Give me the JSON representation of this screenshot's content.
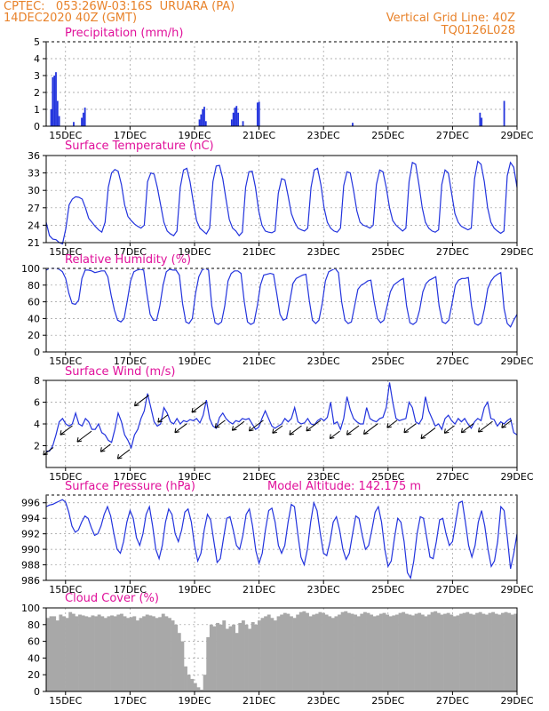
{
  "header": {
    "line1_left": "CPTEC:   053:26W-03:16S  URUARA (PA)",
    "line2_left": "14DEC2020 40Z (GMT)",
    "line1_right": "Vertical Grid Line: 40Z",
    "line2_right": "TQ0126L028"
  },
  "colors": {
    "header": "#e8822a",
    "title": "#e0109a",
    "series": "#2233dd",
    "cloud": "#a8a8a8",
    "grid": "#999999"
  },
  "x_tick_labels": [
    "15DEC",
    "17DEC",
    "19DEC",
    "21DEC",
    "23DEC",
    "25DEC",
    "27DEC",
    "29DEC"
  ],
  "chart_data": [
    {
      "type": "bar",
      "title": "Precipitation (mm/h)",
      "ylim": [
        0,
        5
      ],
      "yticks": [
        "0",
        "1",
        "2",
        "3",
        "4",
        "5"
      ],
      "x_days": [
        0.55,
        0.6,
        0.65,
        0.7,
        0.75,
        0.8,
        1.25,
        1.5,
        1.55,
        1.6,
        5.15,
        5.2,
        5.25,
        5.3,
        5.35,
        6.15,
        6.2,
        6.25,
        6.3,
        6.35,
        6.5,
        6.95,
        7.0,
        9.9,
        13.85,
        13.9,
        14.6
      ],
      "values": [
        1.0,
        2.9,
        3.0,
        3.2,
        1.5,
        0.6,
        0.25,
        0.5,
        0.8,
        1.1,
        0.4,
        0.7,
        1.0,
        1.15,
        0.3,
        0.4,
        0.8,
        1.1,
        1.2,
        0.8,
        0.3,
        1.4,
        1.45,
        0.2,
        0.8,
        0.5,
        1.5
      ]
    },
    {
      "type": "line",
      "title": "Surface Temperature (nC)",
      "ylim": [
        21,
        36
      ],
      "yticks": [
        "21",
        "24",
        "27",
        "30",
        "33",
        "36"
      ],
      "values": [
        24.5,
        22.2,
        21.6,
        21.5,
        21.0,
        20.8,
        23.4,
        27.5,
        28.5,
        28.9,
        28.8,
        28.5,
        27.0,
        25.2,
        24.5,
        23.8,
        23.2,
        22.8,
        24.5,
        30.5,
        33.0,
        33.6,
        33.3,
        31.0,
        27.5,
        25.5,
        24.8,
        24.2,
        23.8,
        23.5,
        24.0,
        31.5,
        33.0,
        32.8,
        30.5,
        27.5,
        24.5,
        23.0,
        22.5,
        22.2,
        23.0,
        30.5,
        33.5,
        33.8,
        31.5,
        28.0,
        24.8,
        23.5,
        23.0,
        22.5,
        23.5,
        31.5,
        34.2,
        34.3,
        32.0,
        28.5,
        25.0,
        23.5,
        23.0,
        22.2,
        22.8,
        30.5,
        33.2,
        33.3,
        30.5,
        26.5,
        24.0,
        23.0,
        22.8,
        22.7,
        23.0,
        29.5,
        32.0,
        31.8,
        29.0,
        26.0,
        24.5,
        23.5,
        23.2,
        23.0,
        23.5,
        30.5,
        33.5,
        33.8,
        31.0,
        27.0,
        24.5,
        23.5,
        23.0,
        22.8,
        23.5,
        30.8,
        33.2,
        33.0,
        30.0,
        26.5,
        24.5,
        24.0,
        23.8,
        23.5,
        24.0,
        31.0,
        33.5,
        33.2,
        30.5,
        27.0,
        24.8,
        24.0,
        23.5,
        23.0,
        23.5,
        31.5,
        34.8,
        34.5,
        31.0,
        27.0,
        24.5,
        23.5,
        23.0,
        22.8,
        23.2,
        31.0,
        33.5,
        33.0,
        29.5,
        26.0,
        24.5,
        23.8,
        23.5,
        23.2,
        23.5,
        32.0,
        35.0,
        34.5,
        31.5,
        27.0,
        24.5,
        23.5,
        23.0,
        22.6,
        23.0,
        32.5,
        34.8,
        34.0,
        30.5
      ]
    },
    {
      "type": "line",
      "title": "Relative Humidity (%)",
      "ylim": [
        0,
        100
      ],
      "yticks": [
        "0",
        "20",
        "40",
        "60",
        "80",
        "100"
      ],
      "values": [
        98,
        100,
        100,
        100,
        99,
        96,
        88,
        70,
        58,
        57,
        62,
        88,
        98,
        98,
        97,
        95,
        96,
        97,
        97,
        90,
        68,
        50,
        38,
        36,
        40,
        62,
        85,
        96,
        98,
        99,
        98,
        70,
        45,
        38,
        38,
        55,
        80,
        96,
        99,
        98,
        98,
        92,
        58,
        36,
        34,
        40,
        70,
        90,
        98,
        100,
        98,
        55,
        35,
        33,
        36,
        55,
        85,
        94,
        97,
        97,
        94,
        60,
        36,
        33,
        35,
        55,
        80,
        92,
        93,
        94,
        93,
        70,
        45,
        38,
        40,
        60,
        82,
        88,
        90,
        92,
        93,
        62,
        38,
        34,
        38,
        58,
        85,
        96,
        98,
        100,
        95,
        60,
        38,
        34,
        36,
        55,
        75,
        80,
        82,
        85,
        86,
        60,
        40,
        35,
        38,
        55,
        72,
        80,
        83,
        86,
        88,
        55,
        35,
        33,
        36,
        50,
        72,
        82,
        86,
        88,
        90,
        55,
        36,
        34,
        38,
        58,
        80,
        86,
        88,
        88,
        89,
        55,
        34,
        32,
        35,
        52,
        76,
        85,
        90,
        93,
        95,
        52,
        34,
        30,
        38,
        45
      ]
    },
    {
      "type": "line",
      "title": "Surface Wind (m/s)",
      "ylim": [
        0,
        8
      ],
      "yticks": [
        "2",
        "4",
        "6",
        "8"
      ],
      "arrows_note": "wind direction arrows drawn along the speed trace",
      "values": [
        1.5,
        1.5,
        2.0,
        3.0,
        4.2,
        4.5,
        4.0,
        3.8,
        4.0,
        5.0,
        4.0,
        3.8,
        4.5,
        4.2,
        3.5,
        3.5,
        4.0,
        3.2,
        3.0,
        2.5,
        2.3,
        3.5,
        5.0,
        4.2,
        3.0,
        2.5,
        1.8,
        3.0,
        3.5,
        4.5,
        5.2,
        6.8,
        5.5,
        4.2,
        3.8,
        4.0,
        5.5,
        5.0,
        4.2,
        4.0,
        4.5,
        4.0,
        4.3,
        4.2,
        4.4,
        4.3,
        4.5,
        4.1,
        4.8,
        6.2,
        4.5,
        3.8,
        3.6,
        4.6,
        5.0,
        4.5,
        4.2,
        4.0,
        4.3,
        4.2,
        4.5,
        4.4,
        4.5,
        4.0,
        3.5,
        3.7,
        4.5,
        5.2,
        4.5,
        3.8,
        3.6,
        3.8,
        4.0,
        4.5,
        4.2,
        4.5,
        5.5,
        4.2,
        4.0,
        4.1,
        4.5,
        4.0,
        3.9,
        4.3,
        4.5,
        4.3,
        4.6,
        6.0,
        4.0,
        4.2,
        3.5,
        4.5,
        6.5,
        5.3,
        4.5,
        4.2,
        4.0,
        4.0,
        5.5,
        4.5,
        4.3,
        4.2,
        4.5,
        4.6,
        5.5,
        7.8,
        6.0,
        4.5,
        4.3,
        4.4,
        4.5,
        6.0,
        5.5,
        4.2,
        4.0,
        4.5,
        6.5,
        5.2,
        4.5,
        3.8,
        4.0,
        3.5,
        4.5,
        4.8,
        4.3,
        4.0,
        4.5,
        4.2,
        4.5,
        4.0,
        3.6,
        4.2,
        4.5,
        4.3,
        5.5,
        6.0,
        4.5,
        4.4,
        3.8,
        4.2,
        4.0,
        4.3,
        4.5,
        3.2,
        3.0
      ]
    },
    {
      "type": "line",
      "title": "Surface Pressure (hPa)",
      "subtitle": "Model Altitude: 142.175 m",
      "ylim": [
        986,
        997
      ],
      "yticks": [
        "986",
        "988",
        "990",
        "992",
        "994",
        "996"
      ],
      "values": [
        995.5,
        995.7,
        995.8,
        996.0,
        996.2,
        996.4,
        996.1,
        994.8,
        993.0,
        992.2,
        992.5,
        993.5,
        994.3,
        994.0,
        992.8,
        991.8,
        992.0,
        993.0,
        994.5,
        995.5,
        994.3,
        992.0,
        990.0,
        989.5,
        991.0,
        993.5,
        995.0,
        994.0,
        991.5,
        990.5,
        992.0,
        994.5,
        995.5,
        993.0,
        990.0,
        988.8,
        990.5,
        993.5,
        995.2,
        994.5,
        992.0,
        991.0,
        992.5,
        994.8,
        995.2,
        993.5,
        990.5,
        988.5,
        989.5,
        992.5,
        994.5,
        993.8,
        991.0,
        988.3,
        988.8,
        991.5,
        994.0,
        994.2,
        992.5,
        990.5,
        990.0,
        991.8,
        994.5,
        995.2,
        993.0,
        989.8,
        988.2,
        989.5,
        992.5,
        995.0,
        995.3,
        993.5,
        990.5,
        989.5,
        990.5,
        993.5,
        995.8,
        995.5,
        992.0,
        989.0,
        988.0,
        990.0,
        993.5,
        996.0,
        995.0,
        992.0,
        989.5,
        989.2,
        991.0,
        993.5,
        994.2,
        992.5,
        990.0,
        988.7,
        989.5,
        992.0,
        994.3,
        994.0,
        991.8,
        990.0,
        990.5,
        992.5,
        994.8,
        995.5,
        993.5,
        990.0,
        987.8,
        988.5,
        991.5,
        994.0,
        993.5,
        991.0,
        987.0,
        986.3,
        988.5,
        992.0,
        994.2,
        994.0,
        991.5,
        989.0,
        988.8,
        991.0,
        993.8,
        994.0,
        992.0,
        990.5,
        991.0,
        993.5,
        996.0,
        996.2,
        993.5,
        990.5,
        989.0,
        990.5,
        993.5,
        995.0,
        993.0,
        990.0,
        987.8,
        988.5,
        991.0,
        995.5,
        995.0,
        991.5,
        987.5,
        989.5,
        992.0
      ]
    },
    {
      "type": "area",
      "title": "Cloud Cover (%)",
      "ylim": [
        0,
        100
      ],
      "yticks": [
        "0",
        "20",
        "40",
        "60",
        "80",
        "100"
      ],
      "values": [
        88,
        90,
        90,
        85,
        92,
        90,
        88,
        95,
        93,
        90,
        92,
        91,
        90,
        89,
        91,
        90,
        92,
        90,
        88,
        90,
        91,
        90,
        92,
        93,
        90,
        88,
        89,
        90,
        85,
        88,
        90,
        92,
        91,
        90,
        88,
        89,
        93,
        90,
        88,
        85,
        80,
        70,
        60,
        30,
        20,
        15,
        10,
        5,
        2,
        20,
        65,
        80,
        78,
        82,
        80,
        85,
        75,
        78,
        80,
        70,
        82,
        85,
        80,
        75,
        83,
        80,
        85,
        88,
        90,
        92,
        88,
        85,
        90,
        92,
        94,
        93,
        90,
        88,
        92,
        95,
        96,
        94,
        90,
        92,
        93,
        95,
        94,
        92,
        90,
        88,
        90,
        92,
        95,
        96,
        94,
        93,
        92,
        90,
        93,
        95,
        94,
        92,
        90,
        91,
        93,
        94,
        92,
        90,
        91,
        92,
        94,
        95,
        93,
        92,
        91,
        93,
        94,
        92,
        90,
        92,
        95,
        96,
        94,
        92,
        93,
        94,
        92,
        90,
        91,
        93,
        94,
        95,
        93,
        92,
        94,
        95,
        93,
        92,
        94,
        95,
        93,
        92,
        94,
        95,
        94,
        92,
        93
      ]
    }
  ]
}
